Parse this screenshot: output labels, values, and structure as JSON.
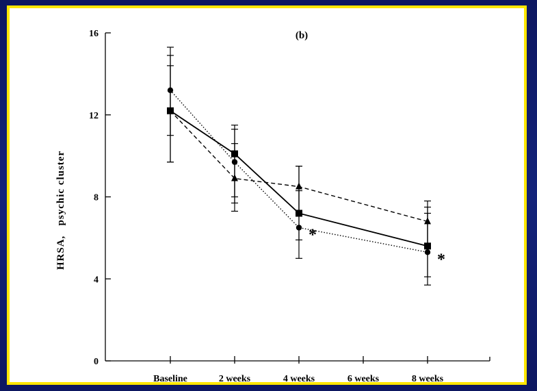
{
  "chart_data": {
    "type": "line",
    "title": "(b)",
    "xlabel": "",
    "ylabel": "HRSA,   psychic cluster",
    "categories": [
      "Baseline",
      "2 weeks",
      "4 weeks",
      "6 weeks",
      "8 weeks"
    ],
    "ylim": [
      0,
      16
    ],
    "yticks": [
      0,
      4,
      8,
      12,
      16
    ],
    "grid": false,
    "legend": "none",
    "series": [
      {
        "style": "solid",
        "marker": "square",
        "x": [
          "Baseline",
          "2 weeks",
          "4 weeks",
          "8 weeks"
        ],
        "values": [
          12.2,
          10.1,
          7.2,
          5.6
        ],
        "err_low": [
          9.7,
          8.0,
          5.9,
          3.7
        ],
        "err_high": [
          14.9,
          11.5,
          9.5,
          7.5
        ]
      },
      {
        "style": "dotted",
        "marker": "circle",
        "x": [
          "Baseline",
          "2 weeks",
          "4 weeks",
          "8 weeks"
        ],
        "values": [
          13.2,
          9.7,
          6.5,
          5.3
        ],
        "err_low": [
          11.0,
          7.3,
          5.0,
          4.1
        ],
        "err_high": [
          15.3,
          11.3,
          8.3,
          7.2
        ]
      },
      {
        "style": "dashed",
        "marker": "triangle",
        "x": [
          "Baseline",
          "2 weeks",
          "4 weeks",
          "8 weeks"
        ],
        "values": [
          12.2,
          8.9,
          8.5,
          6.8
        ],
        "err_low": [
          9.7,
          7.7,
          7.2,
          5.5
        ],
        "err_high": [
          14.4,
          10.6,
          9.5,
          7.8
        ]
      }
    ],
    "annotations": [
      {
        "text": "*",
        "x": "4 weeks"
      },
      {
        "text": "*",
        "x": "8 weeks"
      }
    ]
  }
}
